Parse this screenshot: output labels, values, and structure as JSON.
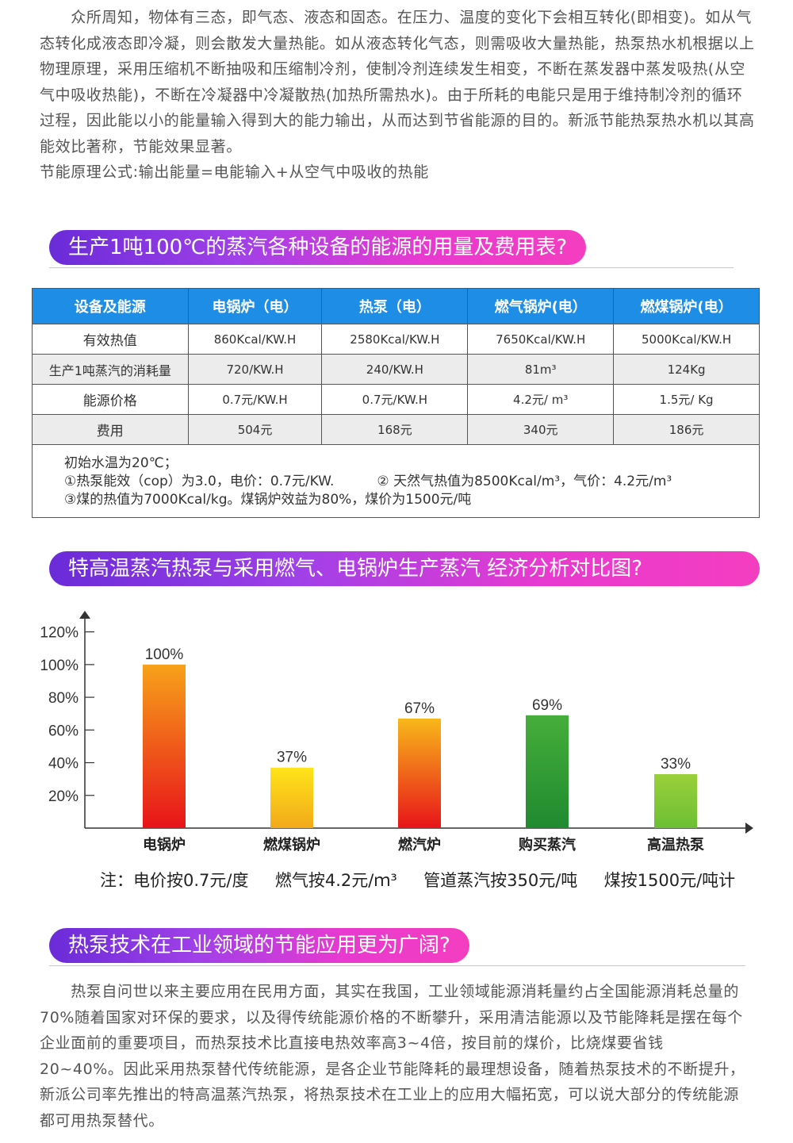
{
  "intro_paragraph": "　　众所周知，物体有三态，即气态、液态和固态。在压力、温度的变化下会相互转化(即相变)。如从气态转化成液态即冷凝，则会散发大量热能。如从液态转化气态，则需吸收大量热能，热泵热水机根据以上物理原理，采用压缩机不断抽吸和压缩制冷剂，使制冷剂连续发生相变，不断在蒸发器中蒸发吸热(从空气中吸收热能)，不断在冷凝器中冷凝散热(加热所需热水)。由于所耗的电能只是用于维持制冷剂的循环过程，因此能以小的能量输入得到大的能力输出，从而达到节省能源的目的。新派节能热泵热水机以其高能效比著称，节能效果显著。\n节能原理公式:输出能量=电能输入+从空气中吸收的热能",
  "section1": {
    "title": "生产1吨100℃的蒸汽各种设备的能源的用量及费用表?"
  },
  "table": {
    "headers": [
      "设备及能源",
      "电锅炉（电）",
      "热泵（电）",
      "燃气锅炉(电）",
      "燃煤锅炉(电）"
    ],
    "rows": [
      [
        "有效热值",
        "860Kcal/KW.H",
        "2580Kcal/KW.H",
        "7650Kcal/KW.H",
        "5000Kcal/KW.H"
      ],
      [
        "生产1吨蒸汽的消耗量",
        "720/KW.H",
        "240/KW.H",
        "81m³",
        "124Kg"
      ],
      [
        "能源价格",
        "0.7元/KW.H",
        "0.7元/KW.H",
        "4.2元/ m³",
        "1.5元/ Kg"
      ],
      [
        "费用",
        "504元",
        "168元",
        "340元",
        "186元"
      ]
    ],
    "notes": [
      "初始水温为20℃；",
      "①热泵能效（cop）为3.0，电价：0.7元/KW.          ② 天然气热值为8500Kcal/m³，气价：4.2元/m³",
      "③煤的热值为7000Kcal/kg。煤锅炉效益为80%，煤价为1500元/吨"
    ]
  },
  "section2": {
    "title": "特高温蒸汽热泵与采用燃气、电锅炉生产蒸汽 经济分析对比图?"
  },
  "chart_data": {
    "type": "bar",
    "categories": [
      "电锅炉",
      "燃煤锅炉",
      "燃汽炉",
      "购买蒸汽",
      "高温热泵"
    ],
    "values": [
      100,
      37,
      67,
      69,
      33
    ],
    "data_labels": [
      "100%",
      "37%",
      "67%",
      "69%",
      "33%"
    ],
    "ylim": [
      0,
      130
    ],
    "yticks": [
      20,
      40,
      60,
      80,
      100,
      120
    ],
    "ytick_labels": [
      "20%",
      "40%",
      "60%",
      "80%",
      "100%",
      "120%"
    ],
    "grid": false,
    "bar_colors": [
      [
        "#f7a21a",
        "#e8141a"
      ],
      [
        "#ffe41a",
        "#f2a91a"
      ],
      [
        "#f8b81a",
        "#e8141a"
      ],
      [
        "#46ae3a",
        "#1f8a30"
      ],
      [
        "#9ad03a",
        "#6cbf34"
      ]
    ]
  },
  "footnote": "注：电价按0.7元/度     燃气按4.2元/ｍ³     管道蒸汽按350元/吨     煤按1500元/吨计",
  "section3": {
    "title": "热泵技术在工业领域的节能应用更为广阔?"
  },
  "closing_paragraph": "　　热泵自问世以来主要应用在民用方面，其实在我国，工业领域能源消耗量约占全国能源消耗总量的70%随着国家对环保的要求，以及得传统能源价格的不断攀升，采用清洁能源以及节能降耗是摆在每个企业面前的重要项目，而热泵技术比直接电热效率高3~4倍，按目前的煤价，比烧煤要省钱20~40%。因此采用热泵替代传统能源，是各企业节能降耗的最理想设备，随着热泵技术的不断提升， 新派公司率先推出的特高温蒸汽热泵，将热泵技术在工业上的应用大幅拓宽，可以说大部分的传统能源都可用热泵替代。"
}
